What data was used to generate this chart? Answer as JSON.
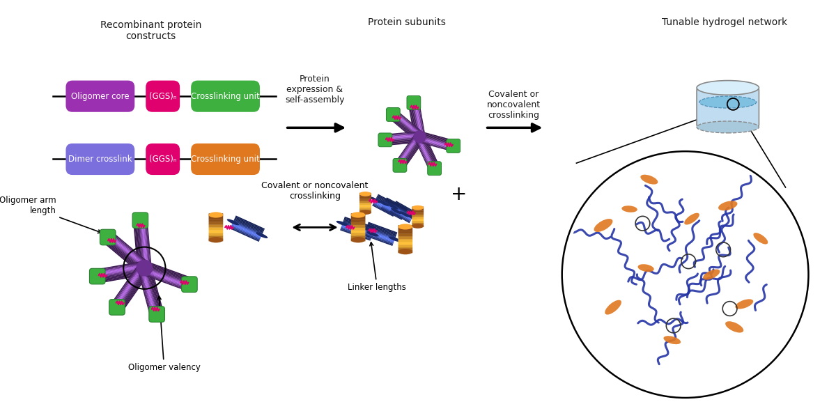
{
  "title_left": "Recombinant protein\nconstructs",
  "title_mid": "Protein subunits",
  "title_right": "Tunable hydrogel network",
  "label_row1": "Oligomer core",
  "label_ggs1": "(GGS)ₙ",
  "label_xl1": "Crosslinking unit",
  "label_row2": "Dimer crosslink",
  "label_ggs2": "(GGS)ₙ",
  "label_xl2": "Crosslinking unit",
  "color_oligomer_core": "#9B30B0",
  "color_ggs": "#E0006E",
  "color_xl_green": "#3DB040",
  "color_xl_orange": "#E07820",
  "color_dimer": "#7B6EDD",
  "color_purple_arm": "#6B3090",
  "color_blue_rod": "#2840A0",
  "arrow_label1": "Protein\nexpression &\nself-assembly",
  "arrow_label2": "Covalent or\nnoncovalent\ncrosslinking",
  "bottom_label1": "Oligomer arm\nlength",
  "bottom_label2": "Covalent or noncovalent\ncrosslinking",
  "bottom_label3": "Linker lengths",
  "bottom_label4": "Oligomer valency",
  "bg_color": "#FFFFFF",
  "text_color": "#1A1A1A"
}
